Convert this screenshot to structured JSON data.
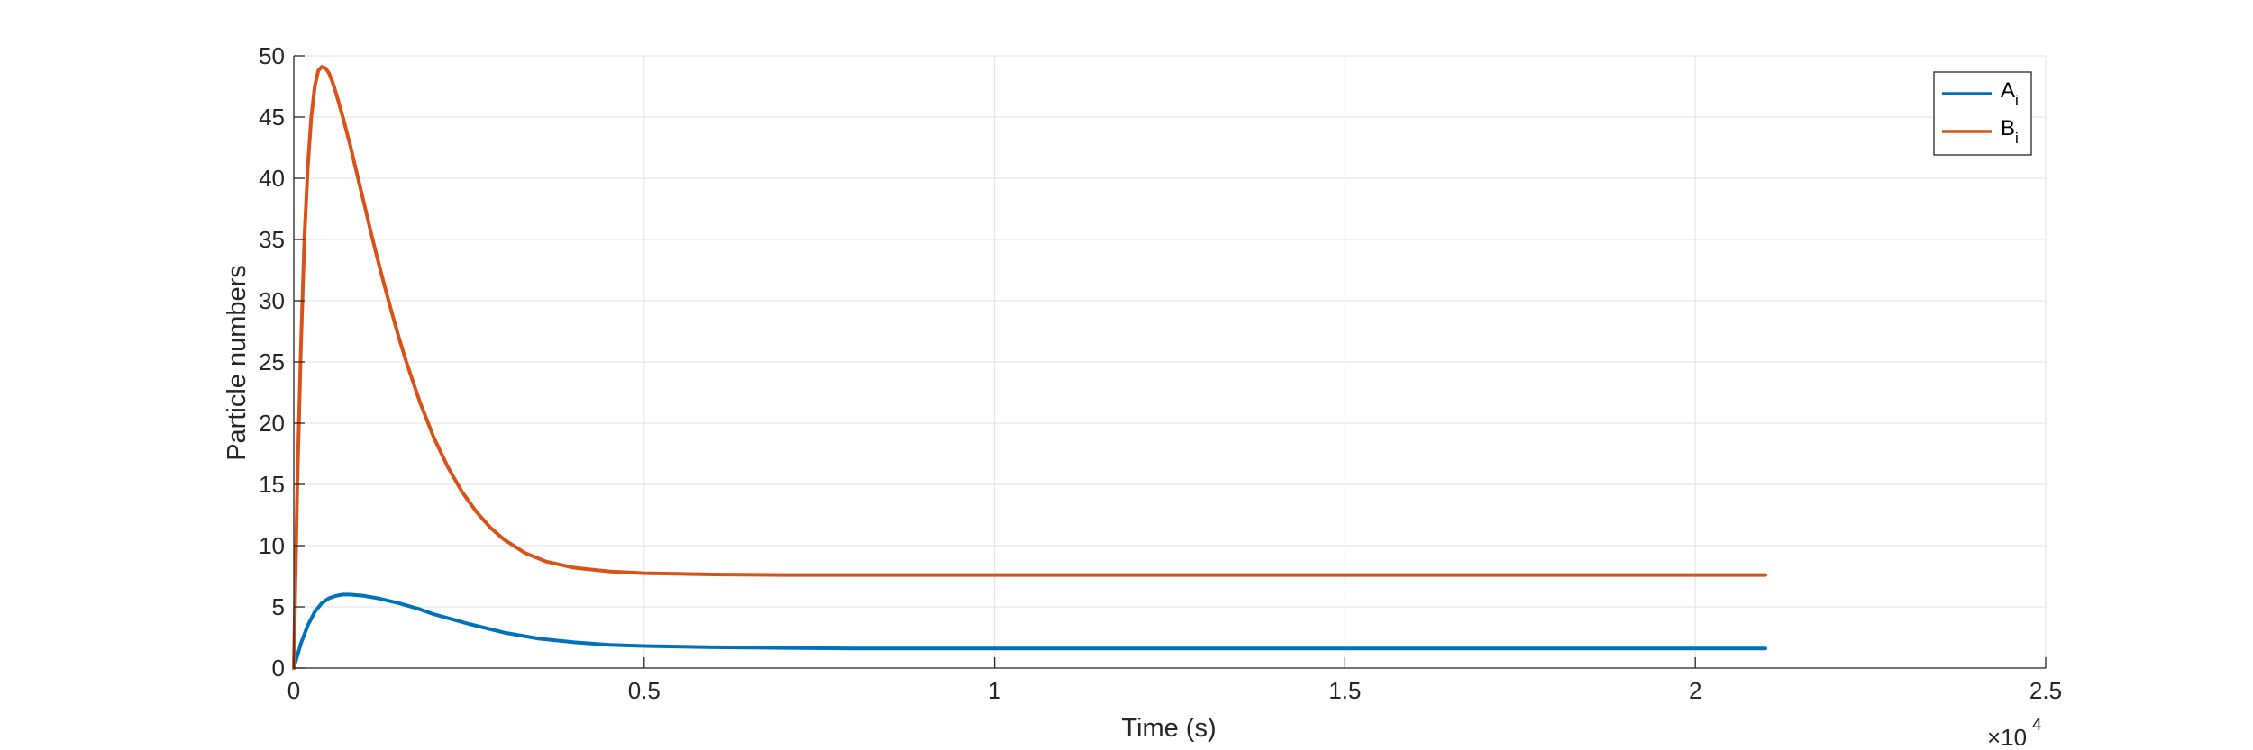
{
  "chart_data": {
    "type": "line",
    "xlabel": "Time (s)",
    "ylabel": "Particle numbers",
    "x_exponent_label": "×10",
    "x_exponent_power": "4",
    "xlim": [
      0,
      25000
    ],
    "ylim": [
      0,
      50
    ],
    "xticks": [
      {
        "value": 0,
        "label": "0"
      },
      {
        "value": 5000,
        "label": "0.5"
      },
      {
        "value": 10000,
        "label": "1"
      },
      {
        "value": 15000,
        "label": "1.5"
      },
      {
        "value": 20000,
        "label": "2"
      },
      {
        "value": 25000,
        "label": "2.5"
      }
    ],
    "yticks": [
      {
        "value": 0,
        "label": "0"
      },
      {
        "value": 5,
        "label": "5"
      },
      {
        "value": 10,
        "label": "10"
      },
      {
        "value": 15,
        "label": "15"
      },
      {
        "value": 20,
        "label": "20"
      },
      {
        "value": 25,
        "label": "25"
      },
      {
        "value": 30,
        "label": "30"
      },
      {
        "value": 35,
        "label": "35"
      },
      {
        "value": 40,
        "label": "40"
      },
      {
        "value": 45,
        "label": "45"
      },
      {
        "value": 50,
        "label": "50"
      }
    ],
    "grid": true,
    "legend_position": "top-right",
    "series": [
      {
        "name": "A",
        "subscript": "i",
        "color": "#0072BD",
        "x": [
          0,
          100,
          200,
          300,
          400,
          500,
          600,
          700,
          800,
          1000,
          1200,
          1500,
          1800,
          2000,
          2500,
          3000,
          3500,
          4000,
          4500,
          5000,
          6000,
          7000,
          8000,
          10000,
          12000,
          15000,
          18000,
          21000
        ],
        "y": [
          0,
          2.0,
          3.5,
          4.6,
          5.3,
          5.7,
          5.9,
          6.0,
          6.0,
          5.9,
          5.7,
          5.3,
          4.8,
          4.4,
          3.6,
          2.9,
          2.4,
          2.1,
          1.9,
          1.8,
          1.7,
          1.65,
          1.6,
          1.6,
          1.6,
          1.6,
          1.6,
          1.6
        ]
      },
      {
        "name": "B",
        "subscript": "i",
        "color": "#D95319",
        "x": [
          0,
          50,
          100,
          150,
          200,
          250,
          300,
          350,
          400,
          450,
          500,
          550,
          600,
          700,
          800,
          900,
          1000,
          1100,
          1200,
          1300,
          1400,
          1500,
          1600,
          1800,
          2000,
          2200,
          2400,
          2600,
          2800,
          3000,
          3300,
          3600,
          4000,
          4500,
          5000,
          5500,
          6000,
          7000,
          8000,
          10000,
          12000,
          15000,
          18000,
          21000
        ],
        "y": [
          0,
          15,
          26,
          35,
          41,
          45,
          47.5,
          48.8,
          49.1,
          49.0,
          48.6,
          47.9,
          47.0,
          45.0,
          42.8,
          40.4,
          38.0,
          35.6,
          33.3,
          31.1,
          29.0,
          27.0,
          25.1,
          21.7,
          18.8,
          16.4,
          14.4,
          12.8,
          11.5,
          10.5,
          9.4,
          8.7,
          8.2,
          7.9,
          7.75,
          7.7,
          7.65,
          7.6,
          7.6,
          7.6,
          7.6,
          7.6,
          7.6,
          7.6
        ]
      }
    ]
  }
}
